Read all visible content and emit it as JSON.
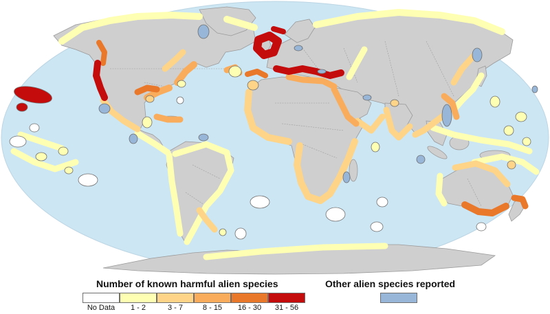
{
  "legend": {
    "harmful_title": "Number of known harmful alien species",
    "other_title": "Other alien species reported",
    "classes": [
      {
        "label": "No Data",
        "color": "#ffffff"
      },
      {
        "label": "1 - 2",
        "color": "#ffffb4"
      },
      {
        "label": "3 - 7",
        "color": "#fdd488"
      },
      {
        "label": "8 - 15",
        "color": "#f9ad5c"
      },
      {
        "label": "16 - 30",
        "color": "#e9782a"
      },
      {
        "label": "31 - 56",
        "color": "#c40c0c"
      }
    ],
    "other_color": "#97b6d8"
  },
  "map": {
    "ocean_color": "#cde6f3",
    "land_color": "#cfcfcf",
    "projection": "robinson-style world",
    "hotspots": [
      {
        "region": "Hawaii",
        "class": "31 - 56"
      },
      {
        "region": "US Pacific coast",
        "class": "31 - 56"
      },
      {
        "region": "North Sea",
        "class": "31 - 56"
      },
      {
        "region": "Mediterranean Sea",
        "class": "31 - 56"
      },
      {
        "region": "Southeast Australia",
        "class": "16 - 30"
      },
      {
        "region": "Gulf of Mexico",
        "class": "16 - 30"
      }
    ]
  }
}
